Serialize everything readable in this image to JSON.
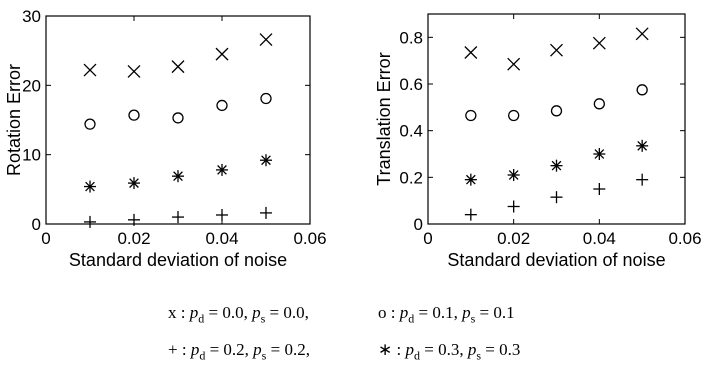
{
  "chart_data": [
    {
      "type": "scatter",
      "title": "",
      "xlabel": "Standard deviation of noise",
      "ylabel": "Rotation Error",
      "xlim": [
        0,
        0.06
      ],
      "ylim": [
        0,
        30
      ],
      "xticks": [
        "0",
        "0.02",
        "0.04",
        "0.06"
      ],
      "yticks": [
        "0",
        "10",
        "20",
        "30"
      ],
      "x": [
        0.01,
        0.02,
        0.03,
        0.04,
        0.05
      ],
      "series": [
        {
          "marker": "x",
          "values": [
            22.2,
            22.0,
            22.7,
            24.5,
            26.6
          ]
        },
        {
          "marker": "o",
          "values": [
            14.4,
            15.7,
            15.3,
            17.1,
            18.1
          ]
        },
        {
          "marker": "*",
          "values": [
            5.4,
            5.9,
            6.9,
            7.8,
            9.2
          ]
        },
        {
          "marker": "+",
          "values": [
            0.3,
            0.6,
            1.0,
            1.3,
            1.6
          ]
        }
      ]
    },
    {
      "type": "scatter",
      "title": "",
      "xlabel": "Standard deviation of noise",
      "ylabel": "Translation Error",
      "xlim": [
        0,
        0.06
      ],
      "ylim": [
        0,
        0.9
      ],
      "xticks": [
        "0",
        "0.02",
        "0.04",
        "0.06"
      ],
      "yticks": [
        "0",
        "0.2",
        "0.4",
        "0.6",
        "0.8"
      ],
      "x": [
        0.01,
        0.02,
        0.03,
        0.04,
        0.05
      ],
      "series": [
        {
          "marker": "x",
          "values": [
            0.735,
            0.685,
            0.745,
            0.775,
            0.815
          ]
        },
        {
          "marker": "o",
          "values": [
            0.465,
            0.465,
            0.485,
            0.515,
            0.575
          ]
        },
        {
          "marker": "*",
          "values": [
            0.19,
            0.21,
            0.25,
            0.3,
            0.335
          ]
        },
        {
          "marker": "+",
          "values": [
            0.04,
            0.075,
            0.115,
            0.15,
            0.19
          ]
        }
      ]
    }
  ],
  "legend": {
    "rows": [
      [
        {
          "marker": "x",
          "text": "x : p_d = 0.0, p_s = 0.0,",
          "sym": "x",
          "pd": "0.0",
          "ps": "0.0,"
        },
        {
          "marker": "o",
          "text": "o : p_d = 0.1, p_s = 0.1",
          "sym": "o",
          "pd": "0.1",
          "ps": "0.1"
        }
      ],
      [
        {
          "marker": "+",
          "text": "+ : p_d = 0.2, p_s = 0.2,",
          "sym": "+",
          "pd": "0.2",
          "ps": "0.2,"
        },
        {
          "marker": "*",
          "text": "∗ : p_d = 0.3, p_s = 0.3",
          "sym": "∗",
          "pd": "0.3",
          "ps": "0.3"
        }
      ]
    ]
  }
}
